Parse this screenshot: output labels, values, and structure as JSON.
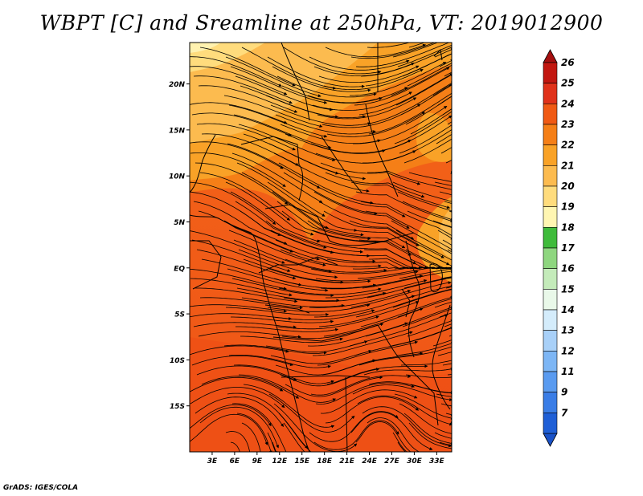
{
  "title": "WBPT [C] and Sreamline at 250hPa, VT: 2019012900",
  "footer": "GrADS: IGES/COLA",
  "map": {
    "lat_labels": [
      {
        "label": "20N",
        "lat": 20
      },
      {
        "label": "15N",
        "lat": 15
      },
      {
        "label": "10N",
        "lat": 10
      },
      {
        "label": "5N",
        "lat": 5
      },
      {
        "label": "EQ",
        "lat": 0
      },
      {
        "label": "5S",
        "lat": -5
      },
      {
        "label": "10S",
        "lat": -10
      },
      {
        "label": "15S",
        "lat": -15
      }
    ],
    "lon_labels": [
      {
        "label": "3E",
        "lon": 3
      },
      {
        "label": "6E",
        "lon": 6
      },
      {
        "label": "9E",
        "lon": 9
      },
      {
        "label": "12E",
        "lon": 12
      },
      {
        "label": "15E",
        "lon": 15
      },
      {
        "label": "18E",
        "lon": 18
      },
      {
        "label": "21E",
        "lon": 21
      },
      {
        "label": "24E",
        "lon": 24
      },
      {
        "label": "27E",
        "lon": 27
      },
      {
        "label": "30E",
        "lon": 30
      },
      {
        "label": "33E",
        "lon": 33
      }
    ],
    "lat_range": [
      -20,
      24.5
    ],
    "lon_range": [
      0,
      35
    ],
    "variables": [
      "WBPT",
      "streamline"
    ],
    "level": "250hPa",
    "valid_time": "2019012900"
  },
  "colorbar": {
    "bins": [
      {
        "label": "7",
        "color": "#1f5fd6"
      },
      {
        "label": "9",
        "color": "#3a7de6"
      },
      {
        "label": "11",
        "color": "#5a9bf0"
      },
      {
        "label": "12",
        "color": "#7db6f5"
      },
      {
        "label": "13",
        "color": "#a8d0f8"
      },
      {
        "label": "14",
        "color": "#d4ecfb"
      },
      {
        "label": "15",
        "color": "#e9f8e9"
      },
      {
        "label": "16",
        "color": "#c4ebba"
      },
      {
        "label": "17",
        "color": "#8ed67f"
      },
      {
        "label": "18",
        "color": "#3fbb3b"
      },
      {
        "label": "19",
        "color": "#fff6b2"
      },
      {
        "label": "20",
        "color": "#ffdc7d"
      },
      {
        "label": "21",
        "color": "#fcbb4f"
      },
      {
        "label": "22",
        "color": "#f9a227"
      },
      {
        "label": "23",
        "color": "#f57f17"
      },
      {
        "label": "24",
        "color": "#f05a14"
      },
      {
        "label": "25",
        "color": "#e0321a"
      },
      {
        "label": "26",
        "color": "#c21710"
      }
    ],
    "top_arrow_color": "#a50f0f",
    "bottom_arrow_color": "#1a52c8"
  }
}
